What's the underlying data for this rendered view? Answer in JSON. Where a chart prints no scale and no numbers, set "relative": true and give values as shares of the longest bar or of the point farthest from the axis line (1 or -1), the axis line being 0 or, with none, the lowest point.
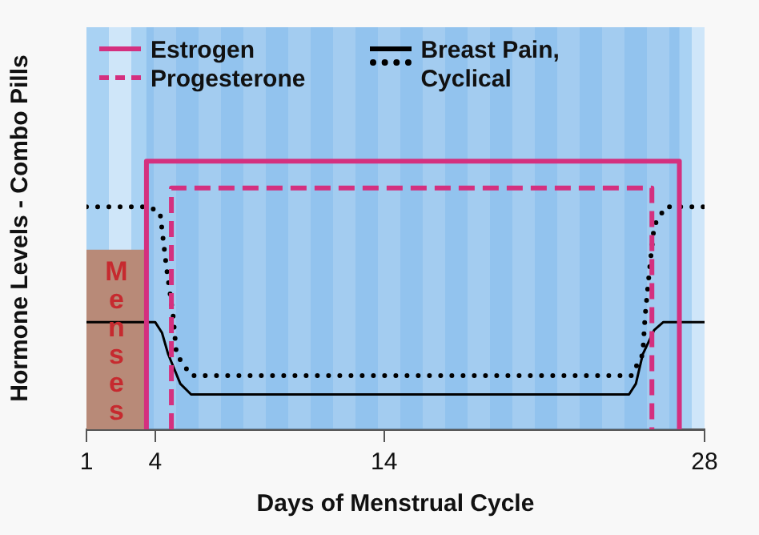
{
  "chart_data": {
    "type": "line",
    "relative": true,
    "xlabel": "Days of Menstrual Cycle",
    "ylabel": "Hormone Levels - Combo Pills",
    "xlim": [
      1,
      28
    ],
    "xticks": [
      1,
      4,
      14,
      28
    ],
    "legend": "top left",
    "grid": false,
    "bands": [
      {
        "axis": "x",
        "from": 3.62,
        "to": 26.9,
        "color": "#7fb7ea"
      }
    ],
    "series": [
      {
        "name": "Menses",
        "type": "area",
        "color": "#b88a78",
        "x": [
          1,
          3.62
        ],
        "values": [
          0.67,
          0.67
        ]
      },
      {
        "name": "Estrogen",
        "color": "#d4307f",
        "line_style": "solid",
        "x": [
          3.62,
          3.62,
          26.9,
          26.9
        ],
        "values": [
          0,
          1,
          1,
          0
        ]
      },
      {
        "name": "Progesterone",
        "color": "#d4307f",
        "line_style": "dashed",
        "x": [
          4.71,
          4.71,
          25.7,
          25.7
        ],
        "values": [
          0,
          0.9,
          0.9,
          0
        ]
      },
      {
        "name": "Breast Pain, Cyclical",
        "color": "#000000",
        "line_style": "solid",
        "x": [
          1,
          4,
          4.3,
          4.57,
          5.1,
          5.57,
          24.7,
          25.0,
          25.3,
          25.8,
          26.2,
          28
        ],
        "values": [
          0.4,
          0.4,
          0.36,
          0.28,
          0.17,
          0.13,
          0.13,
          0.17,
          0.28,
          0.37,
          0.4,
          0.4
        ]
      },
      {
        "color": "#000000",
        "line_style": "dotted",
        "x": [
          1,
          3.7,
          4.21,
          4.5,
          4.79,
          4.93,
          5.57,
          24.8,
          25.3,
          25.4,
          25.6,
          25.8,
          26.3,
          28
        ],
        "values": [
          0.83,
          0.83,
          0.81,
          0.6,
          0.42,
          0.28,
          0.2,
          0.2,
          0.28,
          0.42,
          0.6,
          0.76,
          0.83,
          0.83
        ]
      }
    ]
  }
}
